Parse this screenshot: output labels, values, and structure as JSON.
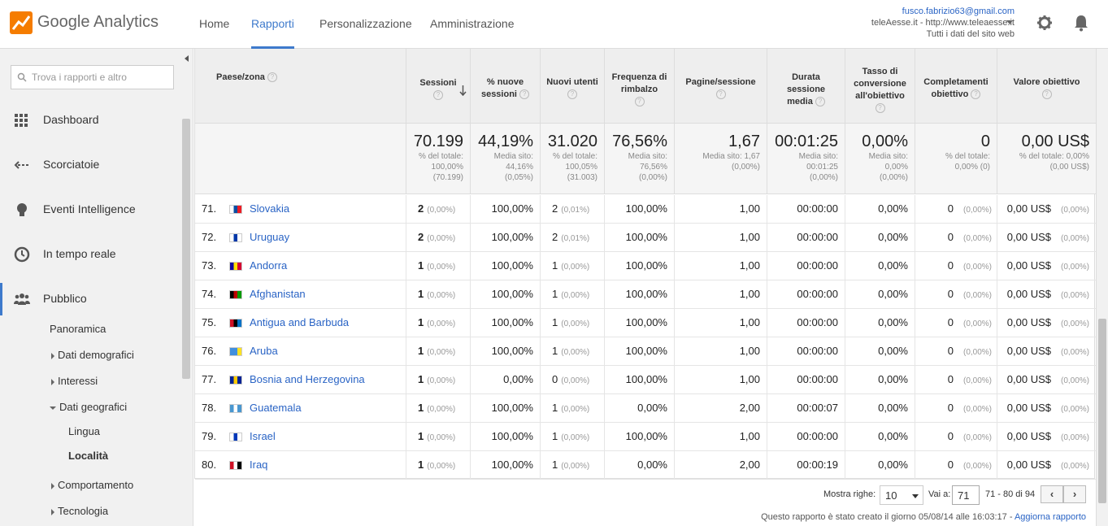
{
  "header": {
    "logo_text": "Google Analytics",
    "nav": [
      {
        "label": "Home",
        "active": false
      },
      {
        "label": "Rapporti",
        "active": true
      },
      {
        "label": "Personalizzazione",
        "active": false
      },
      {
        "label": "Amministrazione",
        "active": false
      }
    ],
    "account": {
      "email": "fusco.fabrizio63@gmail.com",
      "property": "teleAesse.it - http://www.teleaesse.it",
      "view": "Tutti i dati del sito web"
    },
    "accent_color": "#3e7acc"
  },
  "sidebar": {
    "search_placeholder": "Trova i rapporti e altro",
    "items": [
      {
        "label": "Dashboard",
        "icon": "grid-icon"
      },
      {
        "label": "Scorciatoie",
        "icon": "shortcut-arrow-icon"
      },
      {
        "label": "Eventi Intelligence",
        "icon": "lightbulb-icon"
      },
      {
        "label": "In tempo reale",
        "icon": "clock-icon"
      },
      {
        "label": "Pubblico",
        "icon": "people-icon"
      }
    ],
    "sub": {
      "panoramica": "Panoramica",
      "demografici": "Dati demografici",
      "interessi": "Interessi",
      "geografici": "Dati geografici",
      "lingua": "Lingua",
      "localita": "Località",
      "comportamento": "Comportamento",
      "tecnologia": "Tecnologia"
    }
  },
  "table": {
    "headers": {
      "country": "Paese/zona",
      "sessions": "Sessioni",
      "new_sessions": "% nuove sessioni",
      "new_users": "Nuovi utenti",
      "bounce": "Frequenza di rimbalzo",
      "pages": "Pagine/sessione",
      "duration": "Durata sessione media",
      "conversion": "Tasso di conversione all'obiettivo",
      "completions": "Completamenti obiettivo",
      "value": "Valore obiettivo"
    },
    "totals": {
      "sessions": {
        "big": "70.199",
        "l1": "% del totale:",
        "l2": "100,00%",
        "l3": "(70.199)"
      },
      "new_sessions": {
        "big": "44,19%",
        "l1": "Media sito:",
        "l2": "44,16%",
        "l3": "(0,05%)"
      },
      "new_users": {
        "big": "31.020",
        "l1": "% del totale:",
        "l2": "100,05%",
        "l3": "(31.003)"
      },
      "bounce": {
        "big": "76,56%",
        "l1": "Media sito:",
        "l2": "76,56%",
        "l3": "(0,00%)"
      },
      "pages": {
        "big": "1,67",
        "l1": "Media sito: 1,67",
        "l2": "(0,00%)",
        "l3": ""
      },
      "duration": {
        "big": "00:01:25",
        "l1": "Media sito:",
        "l2": "00:01:25",
        "l3": "(0,00%)"
      },
      "conversion": {
        "big": "0,00%",
        "l1": "Media sito:",
        "l2": "0,00%",
        "l3": "(0,00%)"
      },
      "completions": {
        "big": "0",
        "l1": "% del totale:",
        "l2": "0,00% (0)",
        "l3": ""
      },
      "value": {
        "big": "0,00 US$",
        "l1": "% del totale: 0,00%",
        "l2": "(0,00 US$)",
        "l3": ""
      }
    },
    "rows": [
      {
        "n": "71.",
        "country": "Slovakia",
        "flag": [
          "#fff",
          "#0b4ea2",
          "#ee1c25"
        ],
        "sessions": "2",
        "sessions_pct": "(0,00%)",
        "new_sessions": "100,00%",
        "new_users": "2",
        "new_users_pct": "(0,01%)",
        "bounce": "100,00%",
        "pages": "1,00",
        "duration": "00:00:00",
        "conversion": "0,00%",
        "completions": "0",
        "completions_pct": "(0,00%)",
        "value": "0,00 US$",
        "value_pct": "(0,00%)"
      },
      {
        "n": "72.",
        "country": "Uruguay",
        "flag": [
          "#fff",
          "#0038a8",
          "#fff"
        ],
        "sessions": "2",
        "sessions_pct": "(0,00%)",
        "new_sessions": "100,00%",
        "new_users": "2",
        "new_users_pct": "(0,01%)",
        "bounce": "100,00%",
        "pages": "1,00",
        "duration": "00:00:00",
        "conversion": "0,00%",
        "completions": "0",
        "completions_pct": "(0,00%)",
        "value": "0,00 US$",
        "value_pct": "(0,00%)"
      },
      {
        "n": "73.",
        "country": "Andorra",
        "flag": [
          "#10069f",
          "#fedf00",
          "#d50032"
        ],
        "sessions": "1",
        "sessions_pct": "(0,00%)",
        "new_sessions": "100,00%",
        "new_users": "1",
        "new_users_pct": "(0,00%)",
        "bounce": "100,00%",
        "pages": "1,00",
        "duration": "00:00:00",
        "conversion": "0,00%",
        "completions": "0",
        "completions_pct": "(0,00%)",
        "value": "0,00 US$",
        "value_pct": "(0,00%)"
      },
      {
        "n": "74.",
        "country": "Afghanistan",
        "flag": [
          "#000",
          "#be0000",
          "#009a00"
        ],
        "sessions": "1",
        "sessions_pct": "(0,00%)",
        "new_sessions": "100,00%",
        "new_users": "1",
        "new_users_pct": "(0,00%)",
        "bounce": "100,00%",
        "pages": "1,00",
        "duration": "00:00:00",
        "conversion": "0,00%",
        "completions": "0",
        "completions_pct": "(0,00%)",
        "value": "0,00 US$",
        "value_pct": "(0,00%)"
      },
      {
        "n": "75.",
        "country": "Antigua and Barbuda",
        "flag": [
          "#ce1126",
          "#000",
          "#0072c6"
        ],
        "sessions": "1",
        "sessions_pct": "(0,00%)",
        "new_sessions": "100,00%",
        "new_users": "1",
        "new_users_pct": "(0,00%)",
        "bounce": "100,00%",
        "pages": "1,00",
        "duration": "00:00:00",
        "conversion": "0,00%",
        "completions": "0",
        "completions_pct": "(0,00%)",
        "value": "0,00 US$",
        "value_pct": "(0,00%)"
      },
      {
        "n": "76.",
        "country": "Aruba",
        "flag": [
          "#418fde",
          "#418fde",
          "#fbe122"
        ],
        "sessions": "1",
        "sessions_pct": "(0,00%)",
        "new_sessions": "100,00%",
        "new_users": "1",
        "new_users_pct": "(0,00%)",
        "bounce": "100,00%",
        "pages": "1,00",
        "duration": "00:00:00",
        "conversion": "0,00%",
        "completions": "0",
        "completions_pct": "(0,00%)",
        "value": "0,00 US$",
        "value_pct": "(0,00%)"
      },
      {
        "n": "77.",
        "country": "Bosnia and Herzegovina",
        "flag": [
          "#002395",
          "#fecb00",
          "#002395"
        ],
        "sessions": "1",
        "sessions_pct": "(0,00%)",
        "new_sessions": "0,00%",
        "new_users": "0",
        "new_users_pct": "(0,00%)",
        "bounce": "100,00%",
        "pages": "1,00",
        "duration": "00:00:00",
        "conversion": "0,00%",
        "completions": "0",
        "completions_pct": "(0,00%)",
        "value": "0,00 US$",
        "value_pct": "(0,00%)"
      },
      {
        "n": "78.",
        "country": "Guatemala",
        "flag": [
          "#4997d0",
          "#fff",
          "#4997d0"
        ],
        "sessions": "1",
        "sessions_pct": "(0,00%)",
        "new_sessions": "100,00%",
        "new_users": "1",
        "new_users_pct": "(0,00%)",
        "bounce": "0,00%",
        "pages": "2,00",
        "duration": "00:00:07",
        "conversion": "0,00%",
        "completions": "0",
        "completions_pct": "(0,00%)",
        "value": "0,00 US$",
        "value_pct": "(0,00%)"
      },
      {
        "n": "79.",
        "country": "Israel",
        "flag": [
          "#fff",
          "#0038b8",
          "#fff"
        ],
        "sessions": "1",
        "sessions_pct": "(0,00%)",
        "new_sessions": "100,00%",
        "new_users": "1",
        "new_users_pct": "(0,00%)",
        "bounce": "100,00%",
        "pages": "1,00",
        "duration": "00:00:00",
        "conversion": "0,00%",
        "completions": "0",
        "completions_pct": "(0,00%)",
        "value": "0,00 US$",
        "value_pct": "(0,00%)"
      },
      {
        "n": "80.",
        "country": "Iraq",
        "flag": [
          "#ce1126",
          "#fff",
          "#000"
        ],
        "sessions": "1",
        "sessions_pct": "(0,00%)",
        "new_sessions": "100,00%",
        "new_users": "1",
        "new_users_pct": "(0,00%)",
        "bounce": "0,00%",
        "pages": "2,00",
        "duration": "00:00:19",
        "conversion": "0,00%",
        "completions": "0",
        "completions_pct": "(0,00%)",
        "value": "0,00 US$",
        "value_pct": "(0,00%)"
      }
    ]
  },
  "pager": {
    "show_rows_label": "Mostra righe:",
    "show_rows_value": "10",
    "goto_label": "Vai a:",
    "goto_value": "71",
    "range": "71 - 80 di 94",
    "prev": "‹",
    "next": "›"
  },
  "footer": {
    "text": "Questo rapporto è stato creato il giorno 05/08/14 alle 16:03:17 - ",
    "link": "Aggiorna rapporto"
  }
}
